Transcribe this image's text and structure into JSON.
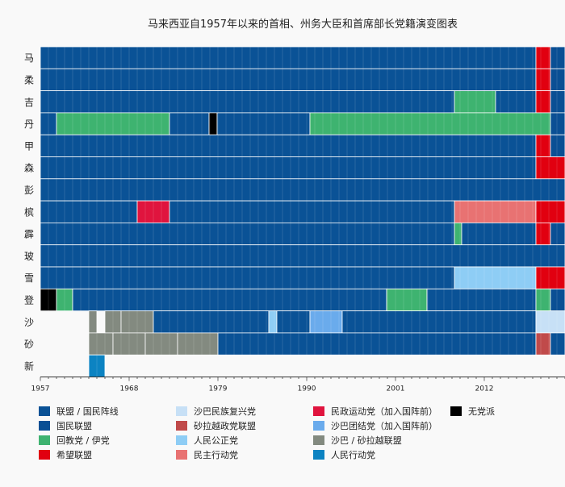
{
  "chart_data": {
    "type": "heatmap",
    "title": "马来西亚自1957年以来的首相、州务大臣和首席部长党籍演变图表",
    "xlim": [
      1957,
      2022
    ],
    "x_ticks": [
      1957,
      1968,
      1979,
      1990,
      2001,
      2012
    ],
    "grid": true,
    "legend_position": "bottom",
    "parties": [
      {
        "key": "alliance_bn",
        "label": "联盟 / 国民阵线",
        "color": "#0a5296"
      },
      {
        "key": "pn",
        "label": "国民联盟",
        "color": "#0a4f94"
      },
      {
        "key": "umno_pas",
        "label": "回教党 / 伊党",
        "color": "#3eb370"
      },
      {
        "key": "ph",
        "label": "希望联盟",
        "color": "#e10010"
      },
      {
        "key": "berjaya",
        "label": "沙巴民族复兴党",
        "color": "#c7e0f6"
      },
      {
        "key": "gps",
        "label": "砂拉越政党联盟",
        "color": "#c04a4a"
      },
      {
        "key": "pkr",
        "label": "人民公正党",
        "color": "#8ecdf5"
      },
      {
        "key": "dap",
        "label": "民主行动党",
        "color": "#e87272"
      },
      {
        "key": "gerakan",
        "label": "民政运动党（加入国阵前）",
        "color": "#e0143e"
      },
      {
        "key": "pbs",
        "label": "沙巴团结党（加入国阵前）",
        "color": "#6aabec"
      },
      {
        "key": "sabah_sarawak",
        "label": "沙巴 / 砂拉越联盟",
        "color": "#838a80"
      },
      {
        "key": "pap",
        "label": "人民行动党",
        "color": "#0c83c2"
      },
      {
        "key": "independent",
        "label": "无党派",
        "color": "#000000"
      }
    ],
    "rows": [
      {
        "label": "马",
        "segments": [
          {
            "party": "alliance_bn",
            "start": 1957,
            "end": 2018.4
          },
          {
            "party": "ph",
            "start": 2018.4,
            "end": 2020.2
          },
          {
            "party": "pn",
            "start": 2020.2,
            "end": 2022
          }
        ]
      },
      {
        "label": "柔",
        "segments": [
          {
            "party": "alliance_bn",
            "start": 1957,
            "end": 2018.4
          },
          {
            "party": "ph",
            "start": 2018.4,
            "end": 2020.2
          },
          {
            "party": "pn",
            "start": 2020.2,
            "end": 2022
          }
        ]
      },
      {
        "label": "吉",
        "segments": [
          {
            "party": "alliance_bn",
            "start": 1957,
            "end": 2008.3
          },
          {
            "party": "umno_pas",
            "start": 2008.3,
            "end": 2013.4
          },
          {
            "party": "alliance_bn",
            "start": 2013.4,
            "end": 2018.4
          },
          {
            "party": "ph",
            "start": 2018.4,
            "end": 2020.2
          },
          {
            "party": "pn",
            "start": 2020.2,
            "end": 2022
          }
        ]
      },
      {
        "label": "丹",
        "segments": [
          {
            "party": "alliance_bn",
            "start": 1957,
            "end": 1959
          },
          {
            "party": "umno_pas",
            "start": 1959,
            "end": 1973
          },
          {
            "party": "alliance_bn",
            "start": 1973,
            "end": 1977.9
          },
          {
            "party": "independent",
            "start": 1977.9,
            "end": 1978.9
          },
          {
            "party": "alliance_bn",
            "start": 1978.9,
            "end": 1990.4
          },
          {
            "party": "umno_pas",
            "start": 1990.4,
            "end": 2020.2
          },
          {
            "party": "pn",
            "start": 2020.2,
            "end": 2022
          }
        ]
      },
      {
        "label": "甲",
        "segments": [
          {
            "party": "alliance_bn",
            "start": 1957,
            "end": 2018.4
          },
          {
            "party": "ph",
            "start": 2018.4,
            "end": 2020.2
          },
          {
            "party": "pn",
            "start": 2020.2,
            "end": 2022
          }
        ]
      },
      {
        "label": "森",
        "segments": [
          {
            "party": "alliance_bn",
            "start": 1957,
            "end": 2018.4
          },
          {
            "party": "ph",
            "start": 2018.4,
            "end": 2022
          }
        ]
      },
      {
        "label": "彭",
        "segments": [
          {
            "party": "alliance_bn",
            "start": 1957,
            "end": 2022
          }
        ]
      },
      {
        "label": "槟",
        "segments": [
          {
            "party": "alliance_bn",
            "start": 1957,
            "end": 1969
          },
          {
            "party": "gerakan",
            "start": 1969,
            "end": 1973
          },
          {
            "party": "alliance_bn",
            "start": 1973,
            "end": 2008.3
          },
          {
            "party": "dap",
            "start": 2008.3,
            "end": 2018.4
          },
          {
            "party": "ph",
            "start": 2018.4,
            "end": 2022
          }
        ]
      },
      {
        "label": "霹",
        "segments": [
          {
            "party": "alliance_bn",
            "start": 1957,
            "end": 2008.3
          },
          {
            "party": "umno_pas",
            "start": 2008.3,
            "end": 2009.2
          },
          {
            "party": "alliance_bn",
            "start": 2009.2,
            "end": 2018.4
          },
          {
            "party": "ph",
            "start": 2018.4,
            "end": 2020.2
          },
          {
            "party": "pn",
            "start": 2020.2,
            "end": 2022
          }
        ]
      },
      {
        "label": "玻",
        "segments": [
          {
            "party": "alliance_bn",
            "start": 1957,
            "end": 2022
          }
        ]
      },
      {
        "label": "雪",
        "segments": [
          {
            "party": "alliance_bn",
            "start": 1957,
            "end": 2008.3
          },
          {
            "party": "pkr",
            "start": 2008.3,
            "end": 2018.4
          },
          {
            "party": "ph",
            "start": 2018.4,
            "end": 2022
          }
        ]
      },
      {
        "label": "登",
        "segments": [
          {
            "party": "independent",
            "start": 1957,
            "end": 1959
          },
          {
            "party": "umno_pas",
            "start": 1959,
            "end": 1961
          },
          {
            "party": "alliance_bn",
            "start": 1961,
            "end": 1999.9
          },
          {
            "party": "umno_pas",
            "start": 1999.9,
            "end": 2004.9
          },
          {
            "party": "alliance_bn",
            "start": 2004.9,
            "end": 2018.4
          },
          {
            "party": "umno_pas",
            "start": 2018.4,
            "end": 2020.2
          },
          {
            "party": "pn",
            "start": 2020.2,
            "end": 2022
          }
        ]
      },
      {
        "label": "沙",
        "segments": [
          {
            "party": "sabah_sarawak",
            "start": 1963,
            "end": 1964
          },
          {
            "party": "sabah_sarawak",
            "start": 1965,
            "end": 1967
          },
          {
            "party": "sabah_sarawak",
            "start": 1967,
            "end": 1971
          },
          {
            "party": "alliance_bn",
            "start": 1971,
            "end": 1985.3
          },
          {
            "party": "pkr",
            "start": 1985.3,
            "end": 1986.3
          },
          {
            "party": "alliance_bn",
            "start": 1986.3,
            "end": 1990.4
          },
          {
            "party": "pbs",
            "start": 1990.4,
            "end": 1994.4
          },
          {
            "party": "alliance_bn",
            "start": 1994.4,
            "end": 2018.4
          },
          {
            "party": "berjaya",
            "start": 2018.4,
            "end": 2022
          }
        ]
      },
      {
        "label": "砂",
        "segments": [
          {
            "party": "sabah_sarawak",
            "start": 1963,
            "end": 1966
          },
          {
            "party": "sabah_sarawak",
            "start": 1966,
            "end": 1970
          },
          {
            "party": "sabah_sarawak",
            "start": 1970,
            "end": 1974
          },
          {
            "party": "sabah_sarawak",
            "start": 1974,
            "end": 1979
          },
          {
            "party": "alliance_bn",
            "start": 1979,
            "end": 2018.4
          },
          {
            "party": "gps",
            "start": 2018.4,
            "end": 2020.2
          },
          {
            "party": "alliance_bn",
            "start": 2020.2,
            "end": 2022
          }
        ]
      },
      {
        "label": "新",
        "segments": [
          {
            "party": "pap",
            "start": 1963,
            "end": 1965
          }
        ]
      }
    ]
  }
}
